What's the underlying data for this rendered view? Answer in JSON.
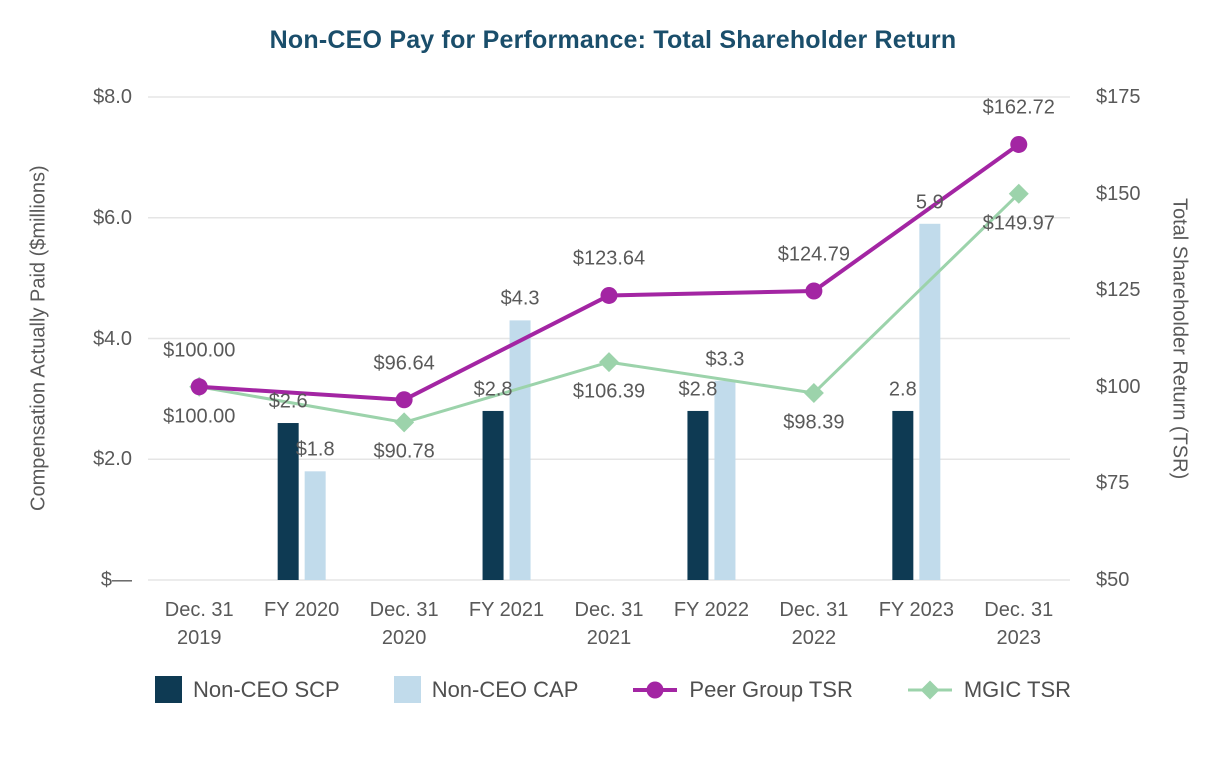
{
  "chart_data": {
    "type": "combo-bar-line",
    "title": "Non-CEO Pay for Performance: Total Shareholder Return",
    "categories": [
      [
        "Dec. 31",
        "2019"
      ],
      [
        "FY 2020"
      ],
      [
        "Dec. 31",
        "2020"
      ],
      [
        "FY 2021"
      ],
      [
        "Dec. 31",
        "2021"
      ],
      [
        "FY 2022"
      ],
      [
        "Dec. 31",
        "2022"
      ],
      [
        "FY 2023"
      ],
      [
        "Dec. 31",
        "2023"
      ]
    ],
    "left_axis": {
      "title": "Compensation Actually Paid ($millions)",
      "min": 0,
      "max": 8,
      "ticks": [
        {
          "label": "$8.0",
          "value": 8
        },
        {
          "label": "$6.0",
          "value": 6
        },
        {
          "label": "$4.0",
          "value": 4
        },
        {
          "label": "$2.0",
          "value": 2
        },
        {
          "label": "$—",
          "value": 0
        }
      ]
    },
    "right_axis": {
      "title": "Total Shareholder Return (TSR)",
      "min": 50,
      "max": 175,
      "ticks": [
        {
          "label": "$175",
          "value": 175
        },
        {
          "label": "$150",
          "value": 150
        },
        {
          "label": "$125",
          "value": 125
        },
        {
          "label": "$100",
          "value": 100
        },
        {
          "label": "$75",
          "value": 75
        },
        {
          "label": "$50",
          "value": 50
        }
      ]
    },
    "bar_series": [
      {
        "name": "Non-CEO SCP",
        "color": "#0e3a53",
        "points": [
          {
            "cat": 1,
            "value": 2.6,
            "label": "$2.6"
          },
          {
            "cat": 3,
            "value": 2.8,
            "label": "$2.8"
          },
          {
            "cat": 5,
            "value": 2.8,
            "label": "$2.8"
          },
          {
            "cat": 7,
            "value": 2.8,
            "label": "2.8"
          }
        ]
      },
      {
        "name": "Non-CEO CAP",
        "color": "#c1dbeb",
        "points": [
          {
            "cat": 1,
            "value": 1.8,
            "label": "$1.8"
          },
          {
            "cat": 3,
            "value": 4.3,
            "label": "$4.3"
          },
          {
            "cat": 5,
            "value": 3.3,
            "label": "$3.3"
          },
          {
            "cat": 7,
            "value": 5.9,
            "label": "5.9"
          }
        ]
      }
    ],
    "line_series": [
      {
        "name": "Peer Group TSR",
        "color": "#a325a3",
        "marker": "circle",
        "stroke_width": 4,
        "points": [
          {
            "cat": 0,
            "value": 100.0,
            "label": "$100.00",
            "label_pos": "above"
          },
          {
            "cat": 2,
            "value": 96.64,
            "label": "$96.64",
            "label_pos": "above"
          },
          {
            "cat": 4,
            "value": 123.64,
            "label": "$123.64",
            "label_pos": "above"
          },
          {
            "cat": 6,
            "value": 124.79,
            "label": "$124.79",
            "label_pos": "above"
          },
          {
            "cat": 8,
            "value": 162.72,
            "label": "$162.72",
            "label_pos": "above"
          }
        ]
      },
      {
        "name": "MGIC TSR",
        "color": "#9cd3ab",
        "marker": "diamond",
        "stroke_width": 3,
        "points": [
          {
            "cat": 0,
            "value": 100.0,
            "label": "$100.00",
            "label_pos": "below"
          },
          {
            "cat": 2,
            "value": 90.78,
            "label": "$90.78",
            "label_pos": "below"
          },
          {
            "cat": 4,
            "value": 106.39,
            "label": "$106.39",
            "label_pos": "below"
          },
          {
            "cat": 6,
            "value": 98.39,
            "label": "$98.39",
            "label_pos": "below"
          },
          {
            "cat": 8,
            "value": 149.97,
            "label": "$149.97",
            "label_pos": "below"
          }
        ]
      }
    ],
    "colors": {
      "title": "#1a4e6b",
      "label_text": "#595959",
      "legend_text": "#4f4f4f",
      "grid": "#e5e5e5"
    },
    "legend_position": "bottom",
    "grid": "horizontal"
  }
}
